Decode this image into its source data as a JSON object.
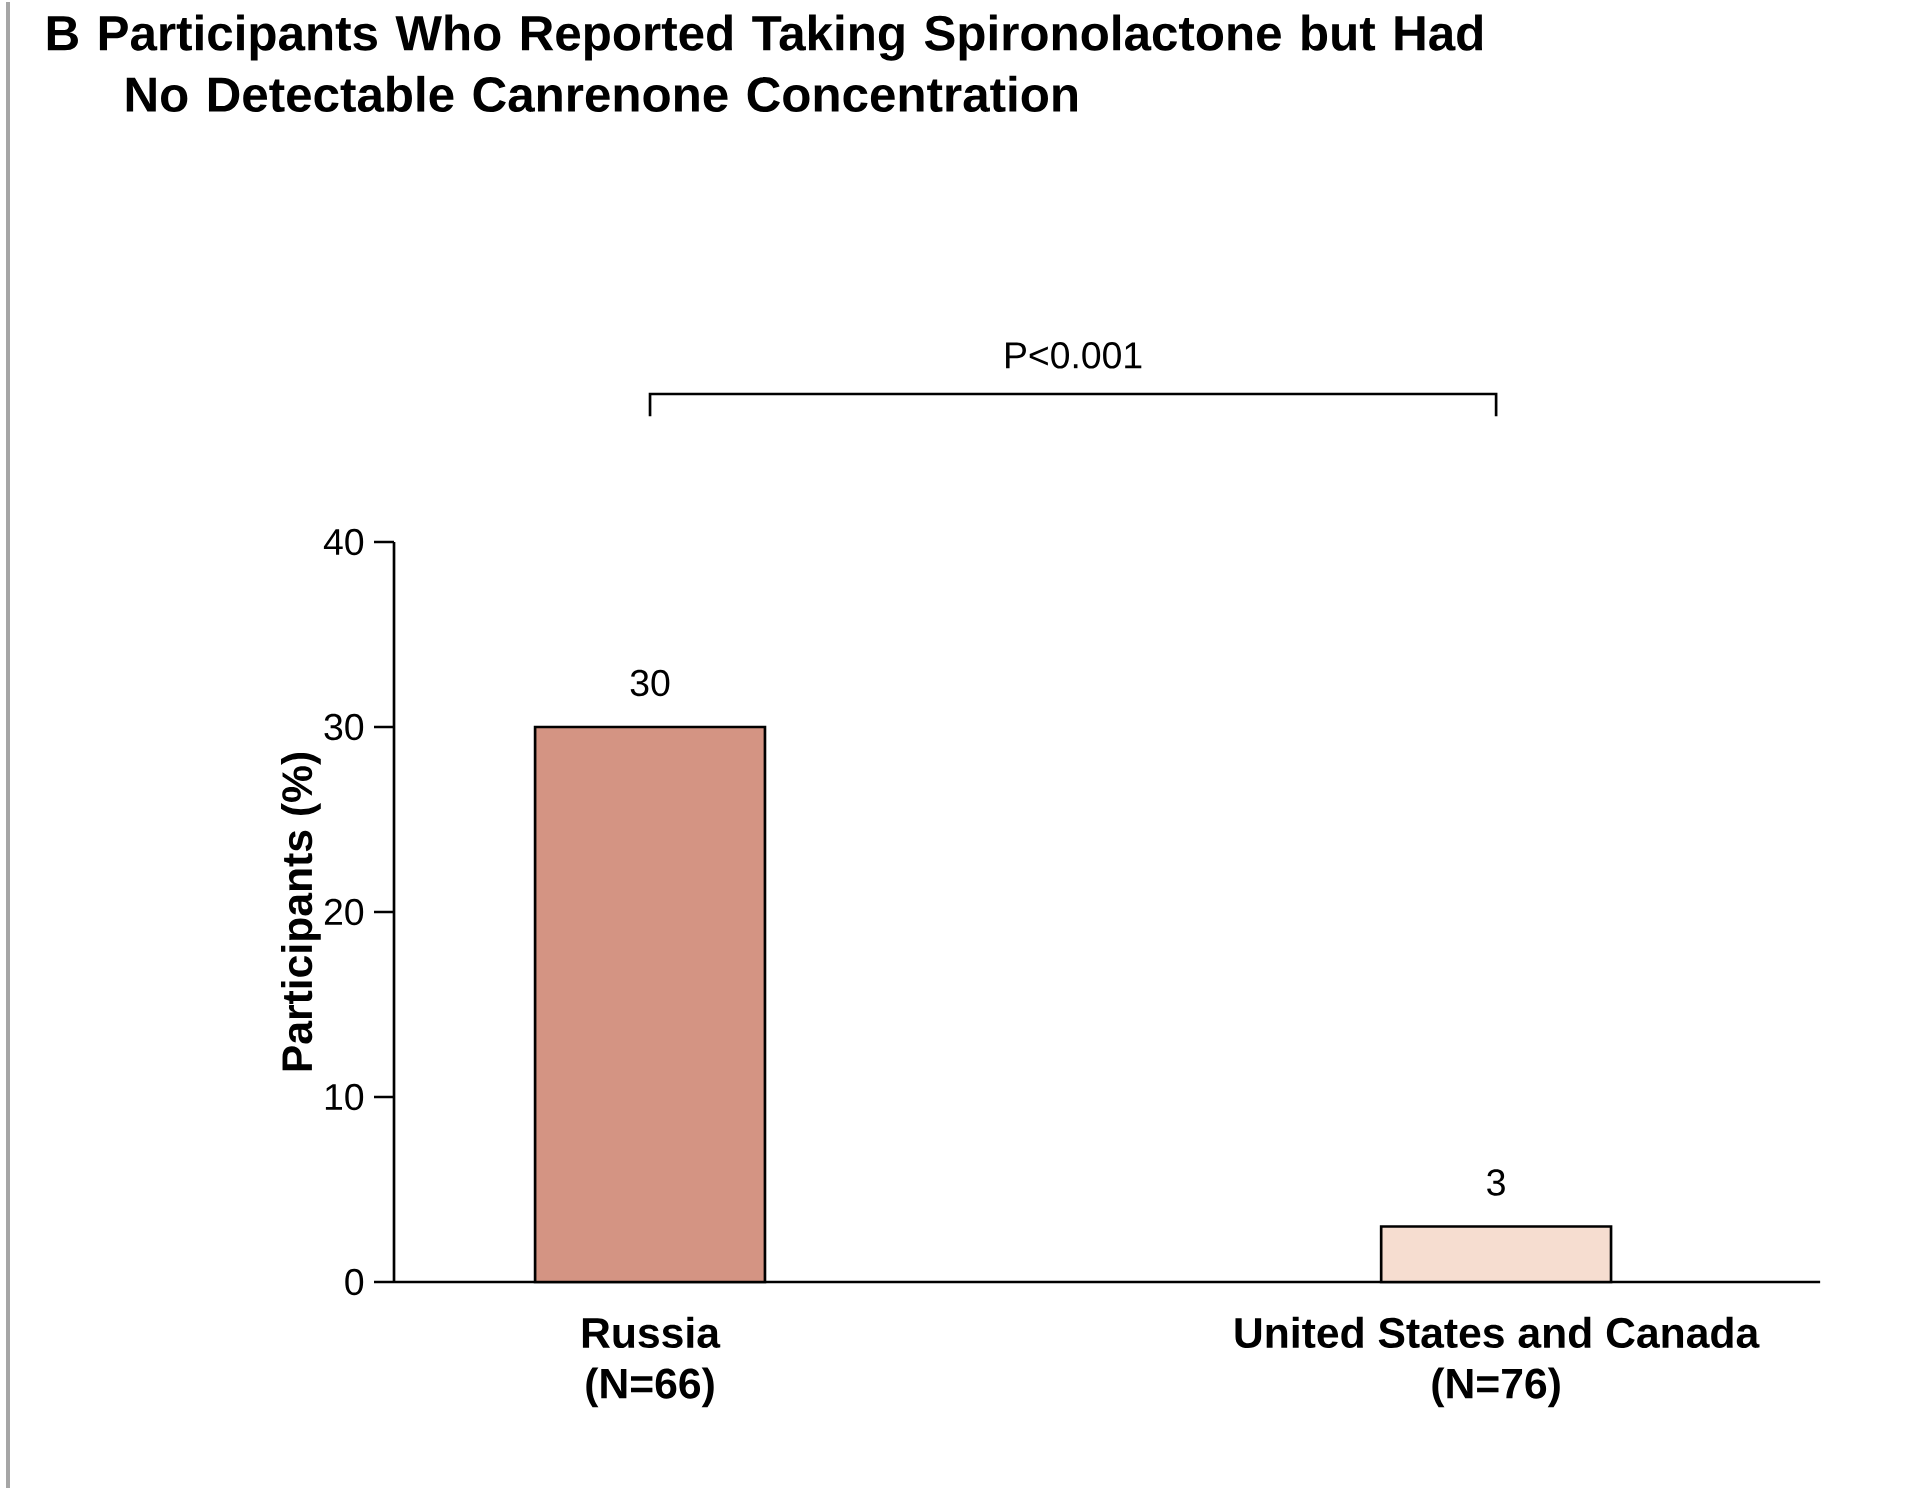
{
  "chart_data": {
    "type": "bar",
    "title": "B  Participants Who Reported Taking Spironolactone but Had No Detectable Canrenone Concentration",
    "ylabel": "Participants (%)",
    "categories": [
      "Russia (N=66)",
      "United States and Canada (N=76)"
    ],
    "values": [
      30,
      3
    ],
    "colors": [
      "#d49483",
      "#f6ddd0"
    ],
    "ylim": [
      0,
      40
    ],
    "yticks": [
      0,
      10,
      20,
      30,
      40
    ],
    "data_labels": true,
    "grid": false,
    "annotations": [
      "P<0.001"
    ]
  }
}
